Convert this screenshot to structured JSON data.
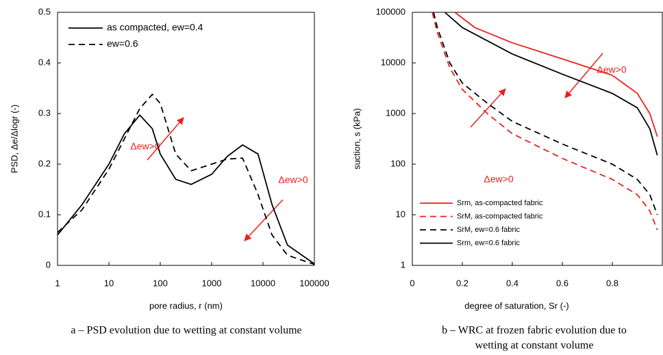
{
  "chart_data": [
    {
      "type": "line",
      "caption": "a – PSD evolution due to wetting at constant volume",
      "xlabel": "pore radius, r (nm)",
      "ylabel": "PSD, Δe/Δlogr (-)",
      "xlog": true,
      "xlim": [
        1,
        100000
      ],
      "xticks": [
        1,
        10,
        100,
        1000,
        10000,
        100000
      ],
      "ylim": [
        0,
        0.5
      ],
      "yticks": [
        0,
        0.1,
        0.2,
        0.3,
        0.4,
        0.5
      ],
      "legend": "upper left",
      "x": [
        1,
        3,
        10,
        20,
        40,
        70,
        100,
        200,
        400,
        1000,
        2000,
        4000,
        8000,
        15000,
        30000,
        100000
      ],
      "series": [
        {
          "name": "as compacted, ew=0.4",
          "color": "#000000",
          "dash": false,
          "values": [
            0.06,
            0.12,
            0.2,
            0.26,
            0.297,
            0.27,
            0.22,
            0.17,
            0.16,
            0.18,
            0.215,
            0.238,
            0.22,
            0.12,
            0.04,
            0.003
          ]
        },
        {
          "name": "ew=0.6",
          "color": "#000000",
          "dash": true,
          "values": [
            0.065,
            0.11,
            0.19,
            0.25,
            0.31,
            0.338,
            0.32,
            0.22,
            0.187,
            0.2,
            0.21,
            0.212,
            0.14,
            0.06,
            0.02,
            0.002
          ]
        }
      ],
      "annotations": [
        {
          "text": "Δew>0",
          "color": "#e8211c"
        },
        {
          "text": "Δew>0",
          "color": "#e8211c"
        }
      ]
    },
    {
      "type": "line",
      "caption": [
        "b – WRC at frozen fabric evolution due to",
        "wetting at constant volume"
      ],
      "xlabel": "degree of saturation, Sr (-)",
      "ylabel": "suction, s (kPa)",
      "ylog": true,
      "xlim": [
        0,
        1
      ],
      "xticks": [
        0,
        0.2,
        0.4,
        0.6,
        0.8
      ],
      "ylim": [
        1,
        100000
      ],
      "yticks": [
        1,
        10,
        100,
        1000,
        10000,
        100000
      ],
      "legend": "lower left",
      "series": [
        {
          "name": "Srm, as-compacted fabric",
          "color": "#e8211c",
          "dash": false,
          "x": [
            0.17,
            0.25,
            0.4,
            0.6,
            0.8,
            0.9,
            0.95,
            0.98
          ],
          "values": [
            100000,
            50000,
            25000,
            12000,
            5700,
            2500,
            1000,
            350
          ]
        },
        {
          "name": "SrM, as-compacted fabric",
          "color": "#e8211c",
          "dash": true,
          "x": [
            0.08,
            0.1,
            0.15,
            0.2,
            0.3,
            0.4,
            0.6,
            0.8,
            0.9,
            0.95,
            0.98
          ],
          "values": [
            100000,
            40000,
            8000,
            3000,
            1000,
            400,
            130,
            50,
            25,
            12,
            5
          ]
        },
        {
          "name": "SrM, ew=0.6 fabric",
          "color": "#000000",
          "dash": true,
          "x": [
            0.085,
            0.1,
            0.15,
            0.2,
            0.3,
            0.4,
            0.6,
            0.8,
            0.9,
            0.95,
            0.98
          ],
          "values": [
            100000,
            50000,
            10000,
            4000,
            1600,
            700,
            250,
            100,
            50,
            25,
            10
          ]
        },
        {
          "name": "Srm, ew=0.6 fabric",
          "color": "#000000",
          "dash": false,
          "x": [
            0.13,
            0.2,
            0.4,
            0.6,
            0.8,
            0.9,
            0.95,
            0.98
          ],
          "values": [
            100000,
            50000,
            15000,
            6000,
            2500,
            1300,
            500,
            150
          ]
        }
      ],
      "annotations": [
        {
          "text": "Δew>0",
          "color": "#e8211c"
        },
        {
          "text": "Δew>0",
          "color": "#e8211c"
        }
      ]
    }
  ]
}
